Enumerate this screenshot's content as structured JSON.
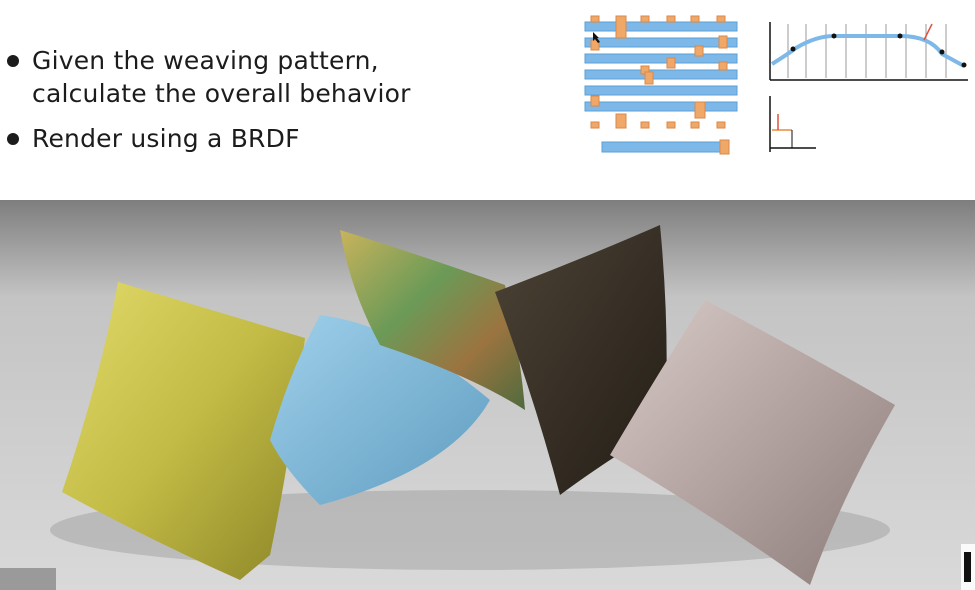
{
  "bullets": [
    {
      "line1": "Given the weaving pattern,",
      "line2": "calculate the overall behavior"
    },
    {
      "line1": "Render using a BRDF"
    }
  ],
  "weave_diagram": {
    "warp_color": "#f0a868",
    "weft_color": "#7db8e8",
    "icons": [
      "weave-pattern",
      "yarn-segment"
    ]
  },
  "profile_graph": {
    "curve_color": "#7db8e8",
    "point_color": "#111111",
    "arrow_color": "#e0503c"
  },
  "render_scene": {
    "floor_color": "#c8c8c8",
    "pillow_colors": [
      "#c9c24c",
      "#7fb3cf",
      "#6f8c56",
      "#3a3127",
      "#b8a9a6"
    ]
  }
}
